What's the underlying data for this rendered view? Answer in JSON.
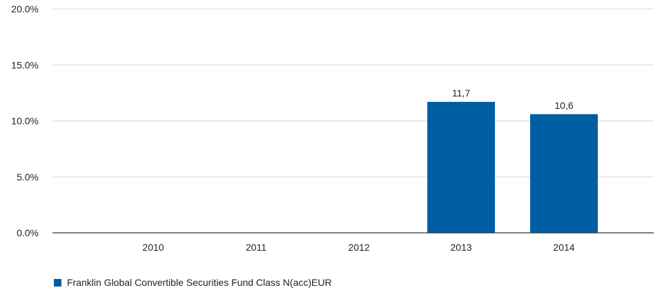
{
  "chart_data": {
    "type": "bar",
    "categories": [
      "2010",
      "2011",
      "2012",
      "2013",
      "2014"
    ],
    "series": [
      {
        "name": "Franklin Global Convertible Securities Fund Class N(acc)EUR",
        "values": [
          null,
          null,
          null,
          11.7,
          10.6
        ],
        "data_labels": [
          "",
          "",
          "",
          "11,7",
          "10,6"
        ],
        "color": "#005ea5"
      }
    ],
    "y_ticks": [
      "0.0%",
      "5.0%",
      "10.0%",
      "15.0%",
      "20.0%"
    ],
    "ylim": [
      0,
      20
    ],
    "grid": true,
    "legend_position": "bottom-left"
  },
  "colors": {
    "bar": "#005ea5",
    "grid": "#d9d9d9",
    "axis": "#333333",
    "text": "#222222"
  }
}
